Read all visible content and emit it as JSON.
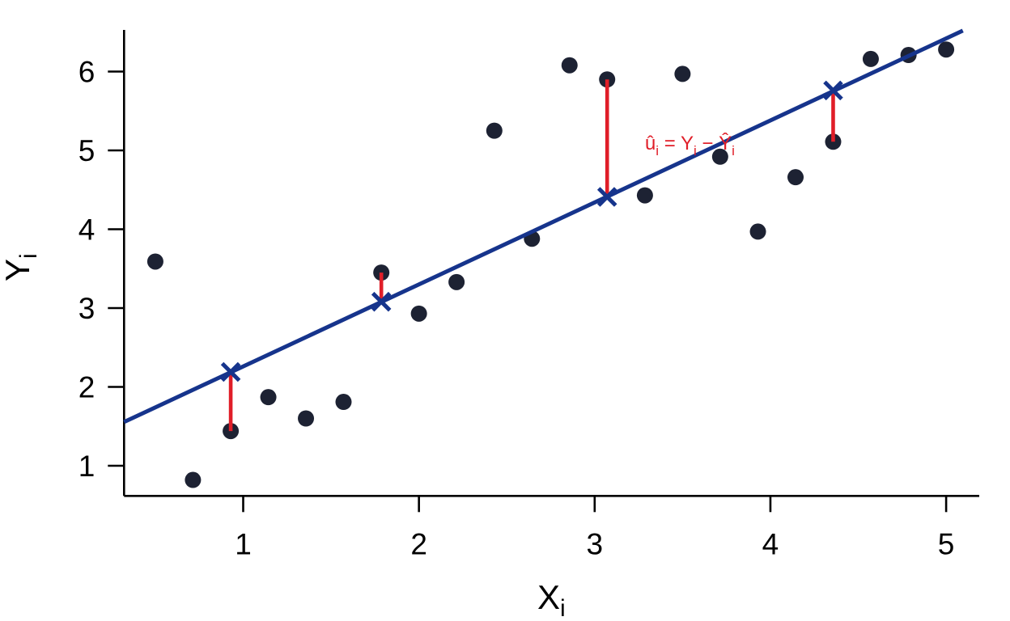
{
  "figure": {
    "background": "#ffffff",
    "title": ""
  },
  "chart_data": {
    "type": "scatter",
    "title": "",
    "xlabel": {
      "main": "X",
      "sub": "i"
    },
    "ylabel": {
      "main": "Y",
      "sub": "i"
    },
    "x_ticks": [
      1,
      2,
      3,
      4,
      5
    ],
    "y_ticks": [
      1,
      2,
      3,
      4,
      5,
      6
    ],
    "xlim": [
      0.32,
      5.19
    ],
    "ylim": [
      0.62,
      6.53
    ],
    "grid": false,
    "legend_position": "none",
    "points": [
      [
        0.5,
        3.59
      ],
      [
        0.714,
        0.82
      ],
      [
        0.929,
        1.44
      ],
      [
        1.143,
        1.87
      ],
      [
        1.357,
        1.6
      ],
      [
        1.571,
        1.81
      ],
      [
        1.786,
        3.45
      ],
      [
        2.0,
        2.93
      ],
      [
        2.214,
        3.33
      ],
      [
        2.429,
        5.25
      ],
      [
        2.643,
        3.88
      ],
      [
        2.857,
        6.08
      ],
      [
        3.071,
        5.9
      ],
      [
        3.286,
        4.43
      ],
      [
        3.5,
        5.97
      ],
      [
        3.714,
        4.92
      ],
      [
        3.929,
        3.97
      ],
      [
        4.143,
        4.66
      ],
      [
        4.357,
        5.11
      ],
      [
        4.571,
        6.16
      ],
      [
        4.786,
        6.21
      ],
      [
        5.0,
        6.28
      ]
    ],
    "regression_line": {
      "intercept": 1.22,
      "slope": 1.04,
      "x_from": 0.322,
      "x_to": 5.095
    },
    "residuals": [
      {
        "x": 0.929,
        "y_observed": 1.44,
        "y_fitted": 2.19
      },
      {
        "x": 1.786,
        "y_observed": 3.45,
        "y_fitted": 3.08
      },
      {
        "x": 3.071,
        "y_observed": 5.9,
        "y_fitted": 4.41
      },
      {
        "x": 4.357,
        "y_observed": 5.11,
        "y_fitted": 5.76
      }
    ],
    "annotation": {
      "parts": [
        {
          "text": "û",
          "sub": false
        },
        {
          "text": "i",
          "sub": true
        },
        {
          "text": " = ",
          "sub": false
        },
        {
          "text": "Y",
          "sub": false
        },
        {
          "text": "i",
          "sub": true
        },
        {
          "text": " − ",
          "sub": false
        },
        {
          "text": "Ŷ",
          "sub": false
        },
        {
          "text": "i",
          "sub": true
        }
      ],
      "x": 3.286,
      "y": 5.01
    },
    "colors": {
      "point": "#1D2233",
      "line": "#16348C",
      "fitted_marker": "#16348C",
      "residual": "#E01E28",
      "annotation": "#E01E28",
      "axis": "#000000"
    }
  }
}
